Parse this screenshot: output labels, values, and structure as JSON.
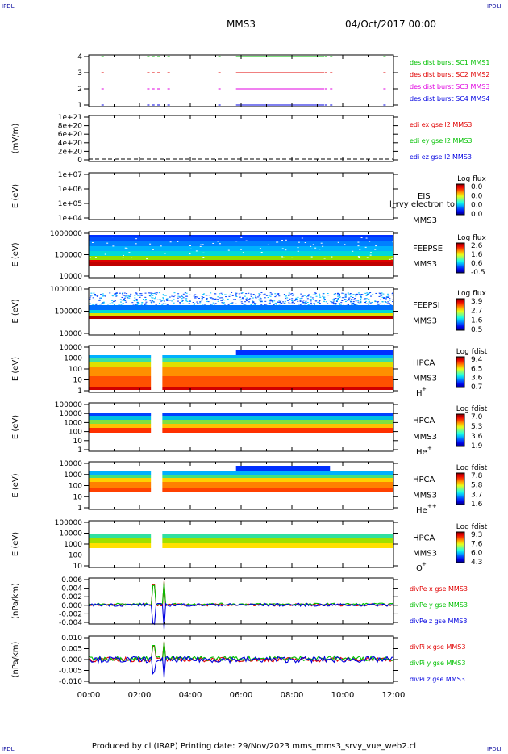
{
  "corner_labels": {
    "tl": "IPDLI",
    "tr": "IPDLI",
    "bl": "IPDLI",
    "br": "IPDLI"
  },
  "header": {
    "spacecraft": "MMS3",
    "date": "04/Oct/2017 00:00"
  },
  "footer": "Produced by cl (IRAP)   Printing date: 29/Nov/2023   mms_mms3_srvy_vue_web2.cl",
  "chart_data": [
    {
      "type": "scatter",
      "panel": "burst-availability",
      "yticks": [
        "1",
        "2",
        "3",
        "4"
      ],
      "series": [
        {
          "name": "des dist burst SC1 MMS1",
          "level": 4,
          "color": "#00c000"
        },
        {
          "name": "des dist burst SC2 MMS2",
          "level": 3,
          "color": "#e00000"
        },
        {
          "name": "des dist burst SC3 MMS3",
          "level": 2,
          "color": "#e000e0"
        },
        {
          "name": "des dist burst SC4 MMS4",
          "level": 1,
          "color": "#0000e0"
        }
      ],
      "x_hours": [
        0.5,
        2.3,
        2.5,
        2.7,
        3.1,
        5.1,
        5.8,
        6.0,
        6.3,
        6.6,
        7.0,
        7.3,
        7.7,
        8.0,
        8.2,
        8.5,
        8.8,
        9.3,
        9.5,
        11.6
      ]
    },
    {
      "type": "line",
      "panel": "edi-e",
      "ylabel": "(mV/m)",
      "yticks": [
        "1e+21",
        "8e+20",
        "6e+20",
        "4e+20",
        "2e+20",
        "0"
      ],
      "series": [
        {
          "name": "edi ex gse l2 MMS3",
          "color": "#e00000"
        },
        {
          "name": "edi ey gse l2 MMS3",
          "color": "#00c000"
        },
        {
          "name": "edi ez gse l2 MMS3",
          "color": "#0000e0"
        }
      ],
      "note": "flat at 0"
    },
    {
      "type": "heatmap",
      "panel": "eis",
      "ylabel": "E (eV)",
      "yticks": [
        "1e+07",
        "1e+06",
        "1e+05",
        "1e+04"
      ],
      "label1": "EIS",
      "label2": "MMS3",
      "overlay_text": "l_rvy electron to",
      "colorbar_title": "Log flux",
      "colorbar_ticks": [
        "0.0",
        "0.0",
        "0.0",
        "0.0"
      ],
      "empty": true
    },
    {
      "type": "heatmap",
      "panel": "feepse",
      "ylabel": "E (eV)",
      "yticks": [
        "1000000",
        "100000",
        "10000"
      ],
      "label1": "FEEPSE",
      "label2": "MMS3",
      "colorbar_title": "Log flux",
      "colorbar_ticks": [
        "2.6",
        "1.6",
        "0.6",
        "-0.5"
      ]
    },
    {
      "type": "heatmap",
      "panel": "feepsi",
      "ylabel": "E (eV)",
      "yticks": [
        "1000000",
        "100000",
        "10000"
      ],
      "label1": "FEEPSI",
      "label2": "MMS3",
      "colorbar_title": "Log flux",
      "colorbar_ticks": [
        "3.9",
        "2.7",
        "1.6",
        "0.5"
      ]
    },
    {
      "type": "heatmap",
      "panel": "hpca-h",
      "ylabel": "E (eV)",
      "yticks": [
        "10000",
        "1000",
        "100",
        "10",
        "1"
      ],
      "label1": "HPCA",
      "label2": "MMS3",
      "species": "H",
      "charge": "+",
      "colorbar_title": "Log fdist",
      "colorbar_ticks": [
        "9.4",
        "6.5",
        "3.6",
        "0.7"
      ]
    },
    {
      "type": "heatmap",
      "panel": "hpca-he1",
      "ylabel": "E (eV)",
      "yticks": [
        "100000",
        "10000",
        "1000",
        "100",
        "10",
        "1"
      ],
      "label1": "HPCA",
      "label2": "MMS3",
      "species": "He",
      "charge": "+",
      "colorbar_title": "Log fdist",
      "colorbar_ticks": [
        "7.0",
        "5.3",
        "3.6",
        "1.9"
      ]
    },
    {
      "type": "heatmap",
      "panel": "hpca-he2",
      "ylabel": "E (eV)",
      "yticks": [
        "10000",
        "1000",
        "100",
        "10",
        "1"
      ],
      "label1": "HPCA",
      "label2": "MMS3",
      "species": "He",
      "charge": "++",
      "colorbar_title": "Log fdist",
      "colorbar_ticks": [
        "7.8",
        "5.8",
        "3.7",
        "1.6"
      ]
    },
    {
      "type": "heatmap",
      "panel": "hpca-o",
      "ylabel": "E (eV)",
      "yticks": [
        "100000",
        "10000",
        "1000",
        "100",
        "10"
      ],
      "label1": "HPCA",
      "label2": "MMS3",
      "species": "O",
      "charge": "+",
      "colorbar_title": "Log fdist",
      "colorbar_ticks": [
        "9.3",
        "7.6",
        "6.0",
        "4.3"
      ]
    },
    {
      "type": "line",
      "panel": "divpe",
      "ylabel": "(nPa/km)",
      "yticks": [
        "0.006",
        "0.004",
        "0.002",
        "0.000",
        "-0.002",
        "-0.004"
      ],
      "ylim": [
        -0.005,
        0.007
      ],
      "series": [
        {
          "name": "divPe x gse MMS3",
          "color": "#e00000"
        },
        {
          "name": "divPe y gse MMS3",
          "color": "#00c000"
        },
        {
          "name": "divPe z gse MMS3",
          "color": "#0000e0"
        }
      ]
    },
    {
      "type": "line",
      "panel": "divpi",
      "ylabel": "(nPa/km)",
      "yticks": [
        "0.010",
        "0.005",
        "0.000",
        "-0.005",
        "-0.010"
      ],
      "ylim": [
        -0.0125,
        0.0125
      ],
      "series": [
        {
          "name": "divPi x gse MMS3",
          "color": "#e00000"
        },
        {
          "name": "divPi y gse MMS3",
          "color": "#00c000"
        },
        {
          "name": "divPi z gse MMS3",
          "color": "#0000e0"
        }
      ]
    }
  ],
  "xaxis": {
    "ticks": [
      "00:00",
      "02:00",
      "04:00",
      "06:00",
      "08:00",
      "10:00",
      "12:00"
    ],
    "range_hours": [
      0,
      12
    ]
  }
}
